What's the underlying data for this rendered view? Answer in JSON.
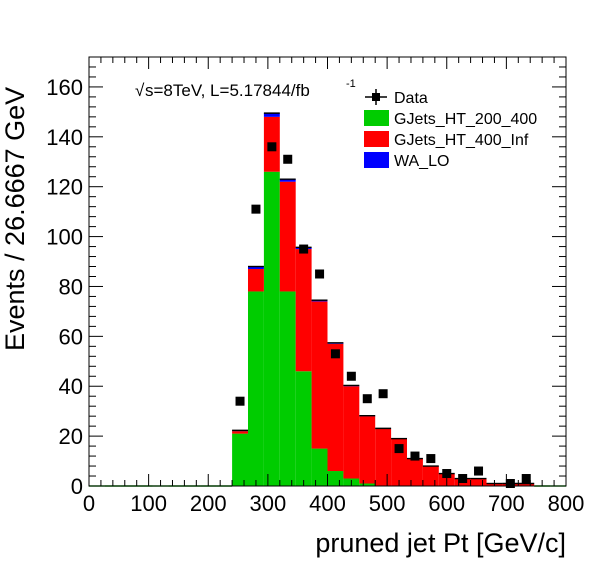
{
  "chart_data": {
    "type": "bar",
    "stacked": true,
    "annotation": {
      "sqrt_symbol": "√",
      "text": "s=8TeV, L=5.17844/fb",
      "superscript": "-1"
    },
    "xlabel": "pruned jet Pt [GeV/c]",
    "ylabel": "Events / 26.6667 GeV",
    "xlim": [
      0,
      800
    ],
    "ylim": [
      0,
      172
    ],
    "x_ticks": [
      "0",
      "100",
      "200",
      "300",
      "400",
      "500",
      "600",
      "700",
      "800"
    ],
    "y_ticks": [
      "0",
      "20",
      "40",
      "60",
      "80",
      "100",
      "120",
      "140",
      "160"
    ],
    "bin_width": 26.6667,
    "bin_edges": [
      0,
      26.6667,
      53.3333,
      80,
      106.6667,
      133.3333,
      160,
      186.6667,
      213.3333,
      240,
      266.6667,
      293.3333,
      320,
      346.6667,
      373.3333,
      400,
      426.6667,
      453.3333,
      480,
      506.6667,
      533.3333,
      560,
      586.6667,
      613.3333,
      640,
      666.6667,
      693.3333,
      720,
      746.6667,
      773.3333,
      800
    ],
    "series": [
      {
        "name": "GJets_HT_200_400",
        "color": "#00cc00",
        "values": [
          0,
          0,
          0,
          0,
          0,
          0,
          0,
          0,
          0,
          21,
          78,
          126,
          78,
          46,
          15,
          6,
          3,
          1,
          0,
          0,
          0,
          0,
          0,
          0,
          0,
          0,
          0,
          0,
          0,
          0
        ]
      },
      {
        "name": "GJets_HT_400_Inf",
        "color": "#ff0000",
        "values": [
          0,
          0,
          0,
          0,
          0,
          0,
          0,
          0,
          0,
          1,
          9,
          22,
          44,
          49,
          59,
          51,
          37,
          27,
          23,
          19,
          11,
          8,
          5,
          3,
          3,
          1,
          1,
          1,
          0,
          0
        ]
      },
      {
        "name": "WA_LO",
        "color": "#0000ff",
        "values": [
          0,
          0,
          0,
          0,
          0,
          0,
          0,
          0,
          0,
          0.3,
          1,
          1.5,
          1,
          0.7,
          0.5,
          0.4,
          0.3,
          0.2,
          0.1,
          0,
          0,
          0,
          0,
          0,
          0,
          0,
          0,
          0,
          0,
          0
        ]
      }
    ],
    "data_points": {
      "name": "Data",
      "x": [
        253.3,
        280,
        306.7,
        333.3,
        360,
        386.7,
        413.3,
        440,
        466.7,
        493.3,
        520,
        546.7,
        573.3,
        600,
        626.7,
        653.3,
        706.7,
        733.3
      ],
      "y": [
        34,
        111,
        136,
        131,
        95,
        85,
        53,
        44,
        35,
        37,
        15,
        12,
        11,
        5,
        3,
        6,
        1,
        3
      ]
    },
    "legend": {
      "position": "top-right",
      "entries": [
        {
          "label": "Data",
          "marker": "data"
        },
        {
          "label": "GJets_HT_200_400",
          "color": "#00cc00"
        },
        {
          "label": "GJets_HT_400_Inf",
          "color": "#ff0000"
        },
        {
          "label": "WA_LO",
          "color": "#0000ff"
        }
      ]
    },
    "grid": false
  }
}
